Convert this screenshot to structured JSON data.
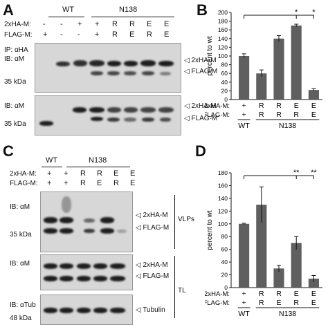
{
  "panels": {
    "A": {
      "letter": "A",
      "groups": [
        "WT",
        "N138"
      ],
      "row_labels": [
        "2xHA-M:",
        "FLAG-M:"
      ],
      "lanes_ha": [
        "-",
        "-",
        "+",
        "+",
        "R",
        "R",
        "E",
        "E"
      ],
      "lanes_flag": [
        "+",
        "-",
        "-",
        "+",
        "R",
        "E",
        "R",
        "E"
      ],
      "blot1": {
        "left_labels": [
          "IP: αHA",
          "IB: αM"
        ],
        "marker": "35 kDa",
        "bands": [
          "2xHA-M",
          "FLAG-M"
        ]
      },
      "blot2": {
        "left_label": "IB: αM",
        "marker": "35 kDa",
        "bands": [
          "2xHA-M",
          "FLAG-M"
        ]
      }
    },
    "B": {
      "letter": "B",
      "sig1": "*",
      "sig2": "*",
      "wt": "WT",
      "mut": "N138"
    },
    "C": {
      "letter": "C",
      "groups": [
        "WT",
        "N138"
      ],
      "row_labels": [
        "2xHA-M:",
        "FLAG-M:"
      ],
      "lanes_ha": [
        "+",
        "+",
        "R",
        "R",
        "E",
        "E"
      ],
      "lanes_flag": [
        "+",
        "+",
        "R",
        "E",
        "R",
        "E"
      ],
      "blot1": {
        "left_label": "IB: αM",
        "marker": "35 kDa",
        "bands": [
          "2xHA-M",
          "FLAG-M"
        ],
        "fraction": "VLPs"
      },
      "blot2": {
        "left_label": "IB: αM",
        "bands": [
          "2xHA-M",
          "FLAG-M"
        ],
        "fraction": "TL"
      },
      "blot3": {
        "left_label": "IB: αTub",
        "marker": "48 kDa",
        "band": "Tubulin"
      }
    },
    "D": {
      "letter": "D",
      "sig1": "**",
      "sig2": "**",
      "wt": "WT",
      "mut": "N138"
    }
  },
  "chart_data": [
    {
      "type": "bar",
      "panel": "B",
      "categories": [
        "+/+",
        "R/R",
        "R/R",
        "E/R",
        "E/E"
      ],
      "ha": [
        "+",
        "R",
        "R",
        "E",
        "E"
      ],
      "flag": [
        "+",
        "R",
        "R",
        "R",
        "E"
      ],
      "values": [
        100,
        60,
        140,
        170,
        22
      ],
      "errors": [
        5,
        8,
        7,
        3,
        3
      ],
      "ylabel": "percent to wt",
      "ylim": [
        0,
        200
      ],
      "yticks": [
        0,
        20,
        40,
        60,
        80,
        100,
        120,
        140,
        160,
        180,
        200
      ],
      "row_labels": [
        "2xHA-M:",
        "FLAG-M:"
      ],
      "color": "#5f5f5f"
    },
    {
      "type": "bar",
      "panel": "D",
      "categories": [
        "+/+",
        "R/R",
        "R/E",
        "E/R",
        "E/E"
      ],
      "ha": [
        "+",
        "R",
        "R",
        "E",
        "E"
      ],
      "flag": [
        "+",
        "R",
        "E",
        "R",
        "E"
      ],
      "values": [
        100,
        130,
        30,
        70,
        14
      ],
      "errors": [
        1,
        28,
        5,
        10,
        5
      ],
      "ylabel": "percent to wt",
      "ylim": [
        0,
        180
      ],
      "yticks": [
        0,
        20,
        40,
        60,
        80,
        100,
        120,
        140,
        160,
        180
      ],
      "row_labels": [
        "2xHA-M:",
        "FLAG-M:"
      ],
      "color": "#5f5f5f"
    }
  ]
}
